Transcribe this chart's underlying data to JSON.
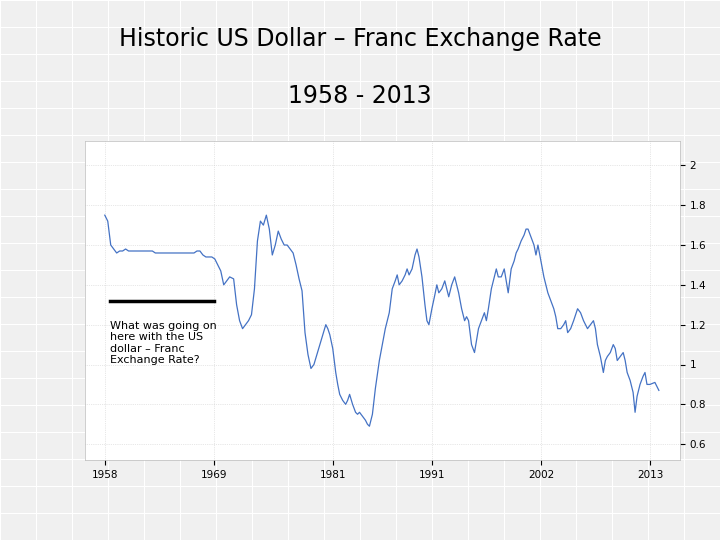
{
  "title_line1": "Historic US Dollar – Franc Exchange Rate",
  "title_line2": "1958 - 2013",
  "annotation_text": "What was going on\nhere with the US\ndollar – Franc\nExchange Rate?",
  "line_color": "#4472c4",
  "background_color": "#ffffff",
  "plot_bg_color": "#ffffff",
  "grid_color": "#d0d0d0",
  "outer_grid_color": "#d0d0d0",
  "xtick_labels": [
    "1958",
    "1969",
    "1981",
    "1991",
    "2002",
    "2013"
  ],
  "xtick_positions": [
    1958,
    1969,
    1981,
    1991,
    2002,
    2013
  ],
  "ytick_labels": [
    "2",
    "1.8",
    "1.6",
    "1.4",
    "1.2",
    "1",
    "0.8",
    "0.6"
  ],
  "ytick_positions": [
    2.0,
    1.8,
    1.6,
    1.4,
    1.2,
    1.0,
    0.8,
    0.6
  ],
  "ylim": [
    0.52,
    2.12
  ],
  "xlim": [
    1956,
    2016
  ],
  "title_fontsize": 17,
  "display_data": [
    [
      1958.0,
      1.75
    ],
    [
      1958.3,
      1.72
    ],
    [
      1958.6,
      1.6
    ],
    [
      1958.9,
      1.58
    ],
    [
      1959.2,
      1.56
    ],
    [
      1959.5,
      1.57
    ],
    [
      1959.8,
      1.57
    ],
    [
      1960.1,
      1.58
    ],
    [
      1960.4,
      1.57
    ],
    [
      1960.7,
      1.57
    ],
    [
      1961.0,
      1.57
    ],
    [
      1961.3,
      1.57
    ],
    [
      1961.6,
      1.57
    ],
    [
      1961.9,
      1.57
    ],
    [
      1962.2,
      1.57
    ],
    [
      1962.5,
      1.57
    ],
    [
      1962.8,
      1.57
    ],
    [
      1963.1,
      1.56
    ],
    [
      1963.4,
      1.56
    ],
    [
      1963.7,
      1.56
    ],
    [
      1964.0,
      1.56
    ],
    [
      1964.3,
      1.56
    ],
    [
      1964.6,
      1.56
    ],
    [
      1964.9,
      1.56
    ],
    [
      1965.2,
      1.56
    ],
    [
      1965.5,
      1.56
    ],
    [
      1965.8,
      1.56
    ],
    [
      1966.1,
      1.56
    ],
    [
      1966.4,
      1.56
    ],
    [
      1966.7,
      1.56
    ],
    [
      1967.0,
      1.56
    ],
    [
      1967.3,
      1.57
    ],
    [
      1967.6,
      1.57
    ],
    [
      1967.9,
      1.55
    ],
    [
      1968.2,
      1.54
    ],
    [
      1968.5,
      1.54
    ],
    [
      1968.8,
      1.54
    ],
    [
      1969.1,
      1.53
    ],
    [
      1969.4,
      1.5
    ],
    [
      1969.7,
      1.47
    ],
    [
      1970.0,
      1.4
    ],
    [
      1970.3,
      1.42
    ],
    [
      1970.6,
      1.44
    ],
    [
      1971.0,
      1.43
    ],
    [
      1971.3,
      1.3
    ],
    [
      1971.6,
      1.22
    ],
    [
      1971.9,
      1.18
    ],
    [
      1972.2,
      1.2
    ],
    [
      1972.5,
      1.22
    ],
    [
      1972.8,
      1.25
    ],
    [
      1973.1,
      1.38
    ],
    [
      1973.4,
      1.62
    ],
    [
      1973.7,
      1.72
    ],
    [
      1974.0,
      1.7
    ],
    [
      1974.3,
      1.75
    ],
    [
      1974.6,
      1.68
    ],
    [
      1974.9,
      1.55
    ],
    [
      1975.2,
      1.6
    ],
    [
      1975.5,
      1.67
    ],
    [
      1975.8,
      1.63
    ],
    [
      1976.1,
      1.6
    ],
    [
      1976.4,
      1.6
    ],
    [
      1976.7,
      1.58
    ],
    [
      1977.0,
      1.56
    ],
    [
      1977.3,
      1.5
    ],
    [
      1977.6,
      1.43
    ],
    [
      1977.9,
      1.37
    ],
    [
      1978.2,
      1.16
    ],
    [
      1978.5,
      1.05
    ],
    [
      1978.8,
      0.98
    ],
    [
      1979.1,
      1.0
    ],
    [
      1979.4,
      1.05
    ],
    [
      1979.7,
      1.1
    ],
    [
      1980.0,
      1.15
    ],
    [
      1980.3,
      1.2
    ],
    [
      1980.5,
      1.18
    ],
    [
      1980.7,
      1.15
    ],
    [
      1981.0,
      1.08
    ],
    [
      1981.3,
      0.96
    ],
    [
      1981.5,
      0.9
    ],
    [
      1981.7,
      0.85
    ],
    [
      1982.0,
      0.82
    ],
    [
      1982.3,
      0.8
    ],
    [
      1982.5,
      0.82
    ],
    [
      1982.7,
      0.85
    ],
    [
      1983.0,
      0.8
    ],
    [
      1983.3,
      0.76
    ],
    [
      1983.5,
      0.75
    ],
    [
      1983.7,
      0.76
    ],
    [
      1984.0,
      0.74
    ],
    [
      1984.3,
      0.72
    ],
    [
      1984.5,
      0.7
    ],
    [
      1984.7,
      0.69
    ],
    [
      1985.0,
      0.75
    ],
    [
      1985.3,
      0.88
    ],
    [
      1985.5,
      0.95
    ],
    [
      1985.7,
      1.02
    ],
    [
      1986.0,
      1.1
    ],
    [
      1986.3,
      1.18
    ],
    [
      1986.5,
      1.22
    ],
    [
      1986.7,
      1.26
    ],
    [
      1987.0,
      1.38
    ],
    [
      1987.3,
      1.42
    ],
    [
      1987.5,
      1.45
    ],
    [
      1987.7,
      1.4
    ],
    [
      1988.0,
      1.42
    ],
    [
      1988.3,
      1.45
    ],
    [
      1988.5,
      1.48
    ],
    [
      1988.7,
      1.45
    ],
    [
      1989.0,
      1.48
    ],
    [
      1989.3,
      1.55
    ],
    [
      1989.5,
      1.58
    ],
    [
      1989.7,
      1.54
    ],
    [
      1990.0,
      1.44
    ],
    [
      1990.3,
      1.3
    ],
    [
      1990.5,
      1.22
    ],
    [
      1990.7,
      1.2
    ],
    [
      1991.0,
      1.28
    ],
    [
      1991.3,
      1.35
    ],
    [
      1991.5,
      1.4
    ],
    [
      1991.7,
      1.36
    ],
    [
      1992.0,
      1.38
    ],
    [
      1992.3,
      1.42
    ],
    [
      1992.5,
      1.38
    ],
    [
      1992.7,
      1.34
    ],
    [
      1993.0,
      1.4
    ],
    [
      1993.3,
      1.44
    ],
    [
      1993.5,
      1.4
    ],
    [
      1993.7,
      1.36
    ],
    [
      1994.0,
      1.28
    ],
    [
      1994.3,
      1.22
    ],
    [
      1994.5,
      1.24
    ],
    [
      1994.7,
      1.22
    ],
    [
      1995.0,
      1.1
    ],
    [
      1995.3,
      1.06
    ],
    [
      1995.5,
      1.12
    ],
    [
      1995.7,
      1.18
    ],
    [
      1996.0,
      1.22
    ],
    [
      1996.3,
      1.26
    ],
    [
      1996.5,
      1.22
    ],
    [
      1996.7,
      1.28
    ],
    [
      1997.0,
      1.38
    ],
    [
      1997.3,
      1.44
    ],
    [
      1997.5,
      1.48
    ],
    [
      1997.7,
      1.44
    ],
    [
      1998.0,
      1.44
    ],
    [
      1998.3,
      1.48
    ],
    [
      1998.5,
      1.42
    ],
    [
      1998.7,
      1.36
    ],
    [
      1999.0,
      1.48
    ],
    [
      1999.3,
      1.52
    ],
    [
      1999.5,
      1.56
    ],
    [
      1999.7,
      1.58
    ],
    [
      2000.0,
      1.62
    ],
    [
      2000.3,
      1.65
    ],
    [
      2000.5,
      1.68
    ],
    [
      2000.7,
      1.68
    ],
    [
      2001.0,
      1.64
    ],
    [
      2001.3,
      1.6
    ],
    [
      2001.5,
      1.55
    ],
    [
      2001.7,
      1.6
    ],
    [
      2002.0,
      1.52
    ],
    [
      2002.3,
      1.44
    ],
    [
      2002.5,
      1.4
    ],
    [
      2002.7,
      1.36
    ],
    [
      2003.0,
      1.32
    ],
    [
      2003.3,
      1.28
    ],
    [
      2003.5,
      1.24
    ],
    [
      2003.7,
      1.18
    ],
    [
      2004.0,
      1.18
    ],
    [
      2004.3,
      1.2
    ],
    [
      2004.5,
      1.22
    ],
    [
      2004.7,
      1.16
    ],
    [
      2005.0,
      1.18
    ],
    [
      2005.3,
      1.22
    ],
    [
      2005.5,
      1.25
    ],
    [
      2005.7,
      1.28
    ],
    [
      2006.0,
      1.26
    ],
    [
      2006.3,
      1.22
    ],
    [
      2006.5,
      1.2
    ],
    [
      2006.7,
      1.18
    ],
    [
      2007.0,
      1.2
    ],
    [
      2007.3,
      1.22
    ],
    [
      2007.5,
      1.18
    ],
    [
      2007.7,
      1.1
    ],
    [
      2008.0,
      1.04
    ],
    [
      2008.3,
      0.96
    ],
    [
      2008.5,
      1.02
    ],
    [
      2008.7,
      1.04
    ],
    [
      2009.0,
      1.06
    ],
    [
      2009.3,
      1.1
    ],
    [
      2009.5,
      1.08
    ],
    [
      2009.7,
      1.02
    ],
    [
      2010.0,
      1.04
    ],
    [
      2010.3,
      1.06
    ],
    [
      2010.5,
      1.02
    ],
    [
      2010.7,
      0.96
    ],
    [
      2011.0,
      0.92
    ],
    [
      2011.3,
      0.86
    ],
    [
      2011.5,
      0.76
    ],
    [
      2011.7,
      0.84
    ],
    [
      2012.0,
      0.9
    ],
    [
      2012.3,
      0.94
    ],
    [
      2012.5,
      0.96
    ],
    [
      2012.7,
      0.9
    ],
    [
      2013.0,
      0.9
    ],
    [
      2013.5,
      0.91
    ],
    [
      2013.9,
      0.87
    ]
  ]
}
